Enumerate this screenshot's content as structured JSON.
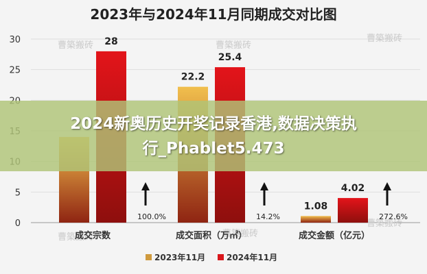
{
  "chart_data": {
    "type": "bar",
    "title": "2023年与2024年11月同期成交对比图",
    "categories": [
      "成交宗数",
      "成交面积（万㎡）",
      "成交金额（亿元）"
    ],
    "series": [
      {
        "name": "2023年11月",
        "values": [
          14,
          22.2,
          1.08
        ]
      },
      {
        "name": "2024年11月",
        "values": [
          28,
          25.4,
          4.02
        ]
      }
    ],
    "value_labels": [
      "",
      "28",
      "22.2",
      "25.4",
      "1.08",
      "4.02"
    ],
    "growth_labels": [
      "100.0%",
      "14.2%",
      "272.6%"
    ],
    "yticks": [
      "0",
      "5",
      "10",
      "15",
      "20",
      "25",
      "30"
    ],
    "ylim": [
      0,
      30
    ],
    "grid": true,
    "legend_position": "bottom",
    "colors": {
      "series_2023": "#cf9a3e",
      "series_2024": "#d9171c"
    }
  },
  "watermark": "曹築搬砖",
  "overlay": {
    "line1": "2024新奥历史开奖记录香港,数据决策执",
    "line2": "行_Phablet5.473"
  }
}
